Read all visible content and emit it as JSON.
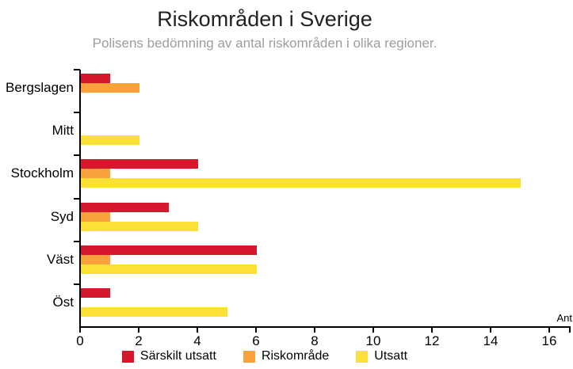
{
  "header": {
    "title": "Riskområden i Sverige",
    "subtitle": "Polisens bedömning av antal riskområden i olika regioner."
  },
  "chart_data": {
    "type": "bar",
    "orientation": "horizontal",
    "title": "Riskområden i Sverige",
    "subtitle": "Polisens bedömning av antal riskområden i olika regioner.",
    "categories": [
      "Bergslagen",
      "Mitt",
      "Stockholm",
      "Syd",
      "Väst",
      "Öst"
    ],
    "series": [
      {
        "name": "Särskilt utsatt",
        "color": "#d6182c",
        "values": [
          1,
          0,
          4,
          3,
          6,
          1
        ]
      },
      {
        "name": "Riskområde",
        "color": "#f9a13c",
        "values": [
          2,
          0,
          1,
          1,
          1,
          0
        ]
      },
      {
        "name": "Utsatt",
        "color": "#fbe136",
        "values": [
          0,
          2,
          15,
          4,
          6,
          5
        ]
      }
    ],
    "xlabel": "Ant",
    "xlim": [
      0,
      16
    ],
    "xticks": [
      0,
      2,
      4,
      6,
      8,
      10,
      12,
      14,
      16
    ],
    "grid": false,
    "legend_position": "bottom",
    "axis_color": "#000000"
  }
}
